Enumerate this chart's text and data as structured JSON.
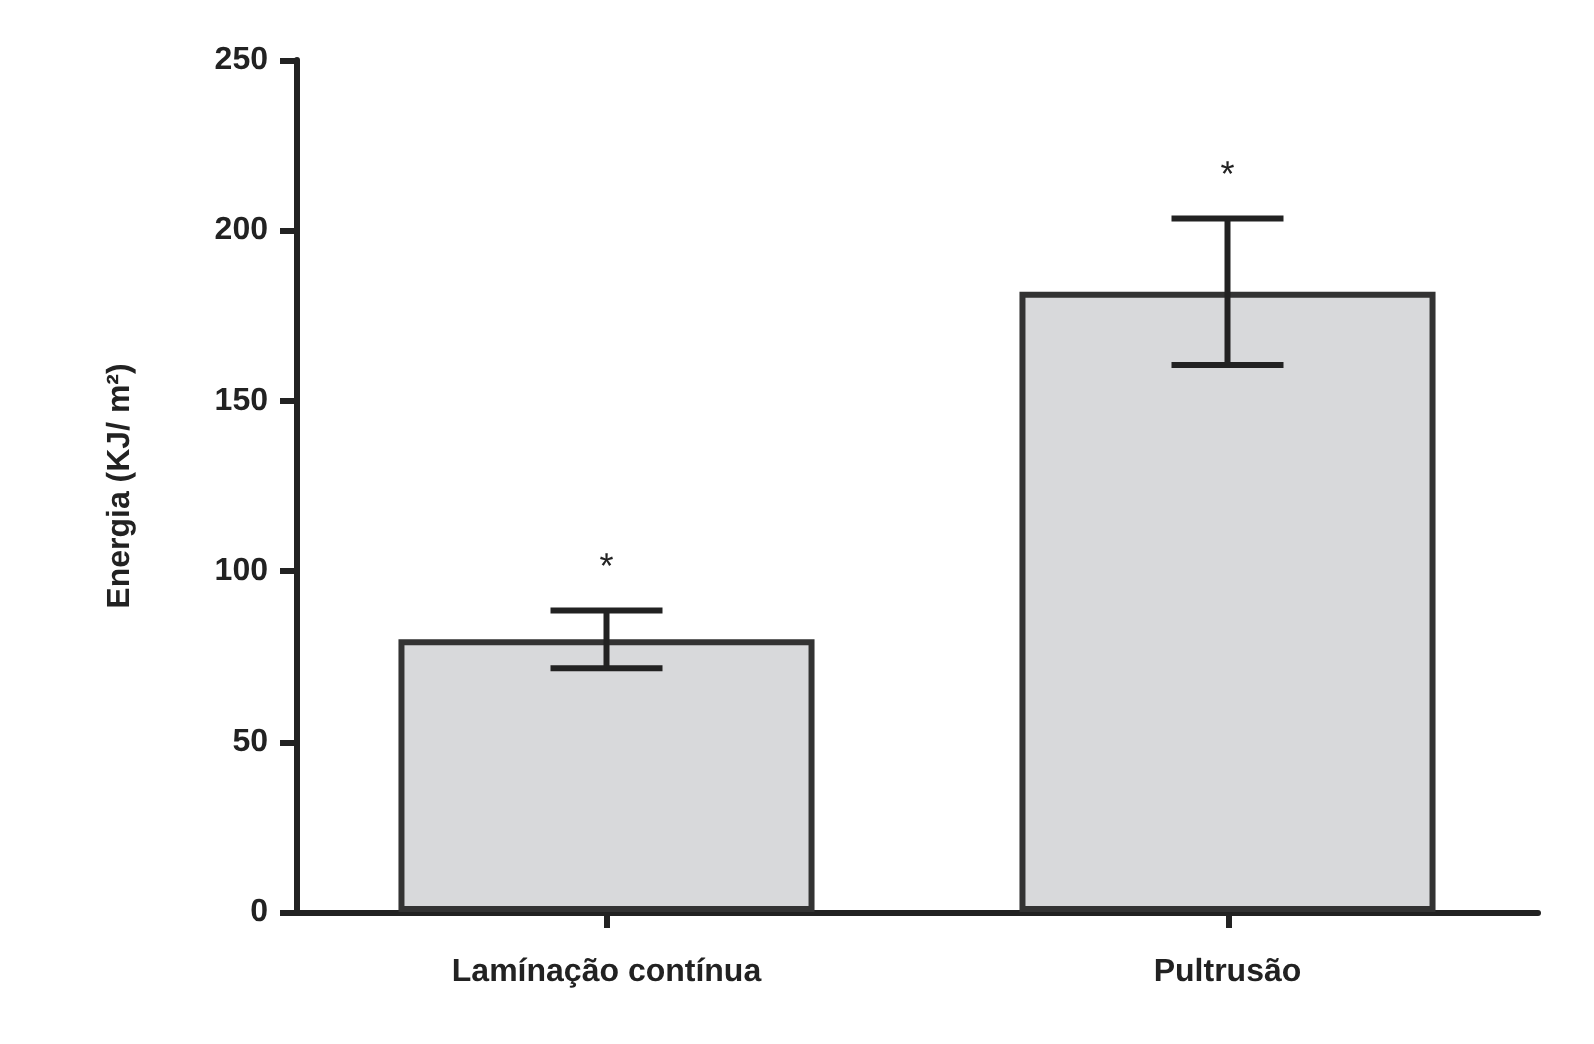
{
  "chart_data": {
    "type": "bar",
    "ylabel": "Energia (KJ/ m²)",
    "categories": [
      "Lamínação contínua",
      "Pultrusão"
    ],
    "values": [
      80,
      182
    ],
    "colors": [
      "#d8d9db",
      "#d8d9db"
    ],
    "errors": [
      8.5,
      21.5
    ],
    "ylim": [
      0,
      250
    ],
    "yticks": [
      0,
      50,
      100,
      150,
      200,
      250
    ],
    "grid": false,
    "annotations": [
      "*",
      "*"
    ]
  }
}
